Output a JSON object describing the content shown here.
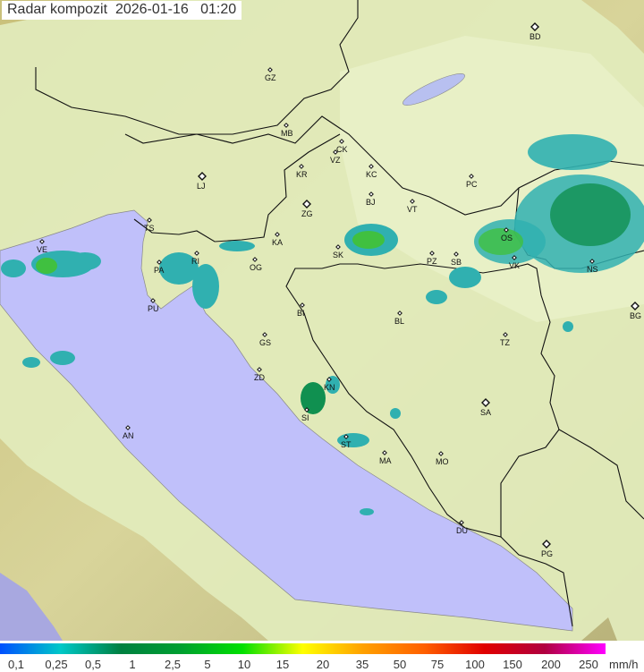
{
  "header": {
    "title": "Radar kompozit  2026-01-16   01:20"
  },
  "stations": [
    {
      "code": "BD",
      "lon": 598,
      "lat": 30,
      "major": true
    },
    {
      "code": "GZ",
      "lon": 302,
      "lat": 78,
      "major": false
    },
    {
      "code": "MB",
      "lon": 320,
      "lat": 140,
      "major": false
    },
    {
      "code": "CK",
      "lon": 382,
      "lat": 158,
      "major": false
    },
    {
      "code": "VZ",
      "lon": 375,
      "lat": 170,
      "major": false
    },
    {
      "code": "KR",
      "lon": 337,
      "lat": 186,
      "major": false
    },
    {
      "code": "KC",
      "lon": 415,
      "lat": 186,
      "major": false
    },
    {
      "code": "PC",
      "lon": 527,
      "lat": 197,
      "major": false
    },
    {
      "code": "LJ",
      "lon": 226,
      "lat": 197,
      "major": true
    },
    {
      "code": "ZG",
      "lon": 343,
      "lat": 228,
      "major": true
    },
    {
      "code": "BJ",
      "lon": 415,
      "lat": 217,
      "major": false
    },
    {
      "code": "VT",
      "lon": 461,
      "lat": 225,
      "major": false
    },
    {
      "code": "TS",
      "lon": 167,
      "lat": 246,
      "major": false
    },
    {
      "code": "VE",
      "lon": 47,
      "lat": 270,
      "major": false
    },
    {
      "code": "RI",
      "lon": 220,
      "lat": 283,
      "major": false
    },
    {
      "code": "KA",
      "lon": 310,
      "lat": 262,
      "major": false
    },
    {
      "code": "SK",
      "lon": 378,
      "lat": 276,
      "major": false
    },
    {
      "code": "OS",
      "lon": 566,
      "lat": 257,
      "major": false
    },
    {
      "code": "PZ",
      "lon": 483,
      "lat": 283,
      "major": false
    },
    {
      "code": "SB",
      "lon": 510,
      "lat": 284,
      "major": false
    },
    {
      "code": "VK",
      "lon": 575,
      "lat": 288,
      "major": false
    },
    {
      "code": "NS",
      "lon": 662,
      "lat": 292,
      "major": false
    },
    {
      "code": "PA",
      "lon": 178,
      "lat": 293,
      "major": false
    },
    {
      "code": "OG",
      "lon": 285,
      "lat": 290,
      "major": false
    },
    {
      "code": "PU",
      "lon": 171,
      "lat": 336,
      "major": false
    },
    {
      "code": "BI",
      "lon": 338,
      "lat": 341,
      "major": false
    },
    {
      "code": "BL",
      "lon": 447,
      "lat": 350,
      "major": false
    },
    {
      "code": "BG",
      "lon": 710,
      "lat": 342,
      "major": true
    },
    {
      "code": "GS",
      "lon": 296,
      "lat": 374,
      "major": false
    },
    {
      "code": "TZ",
      "lon": 565,
      "lat": 374,
      "major": false
    },
    {
      "code": "ZD",
      "lon": 290,
      "lat": 413,
      "major": false
    },
    {
      "code": "KN",
      "lon": 368,
      "lat": 424,
      "major": false
    },
    {
      "code": "SI",
      "lon": 343,
      "lat": 458,
      "major": false
    },
    {
      "code": "SA",
      "lon": 543,
      "lat": 450,
      "major": true
    },
    {
      "code": "AN",
      "lon": 143,
      "lat": 478,
      "major": false
    },
    {
      "code": "ST",
      "lon": 387,
      "lat": 488,
      "major": false
    },
    {
      "code": "MA",
      "lon": 430,
      "lat": 506,
      "major": false
    },
    {
      "code": "MO",
      "lon": 493,
      "lat": 507,
      "major": false
    },
    {
      "code": "DU",
      "lon": 516,
      "lat": 584,
      "major": false
    },
    {
      "code": "PG",
      "lon": 611,
      "lat": 608,
      "major": true
    }
  ],
  "legend": {
    "unit": "mm/h",
    "labels": [
      "0,1",
      "0,25",
      "0,5",
      "1",
      "2,5",
      "5",
      "10",
      "15",
      "20",
      "35",
      "50",
      "75",
      "100",
      "150",
      "200",
      "250"
    ],
    "colors": [
      "#0050ff",
      "#00c8c8",
      "#008040",
      "#00a030",
      "#00e000",
      "#ffff00",
      "#ffa000",
      "#ff6000",
      "#e00000",
      "#b00040",
      "#ff00ff"
    ]
  },
  "colors": {
    "sea": "#c0c0fa",
    "land": "#dce8b0",
    "outside": "#a0a060",
    "rain_light": "#30b0b0",
    "rain_mid": "#00a040",
    "rain_heavy": "#40d040"
  }
}
